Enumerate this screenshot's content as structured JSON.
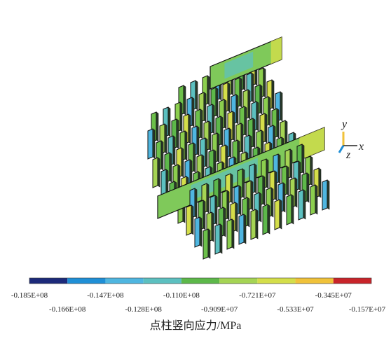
{
  "triad": {
    "y": "y",
    "x": "x",
    "z": "z"
  },
  "colorbar": {
    "colors": [
      "#1c2a7a",
      "#1f8fd6",
      "#4fb6e0",
      "#5cc0c0",
      "#5db84a",
      "#a5d454",
      "#d4de4a",
      "#f0c23a",
      "#c8242a"
    ],
    "upper_labels": [
      "-0.185E+08",
      "-0.147E+08",
      "-0.110E+08",
      "-0.721E+07",
      "-0.345E+07"
    ],
    "lower_labels": [
      "-0.166E+08",
      "-0.128E+08",
      "-0.909E+07",
      "-0.533E+07",
      "-0.157E+07"
    ]
  },
  "caption": "点柱竖向应力/MPa"
}
